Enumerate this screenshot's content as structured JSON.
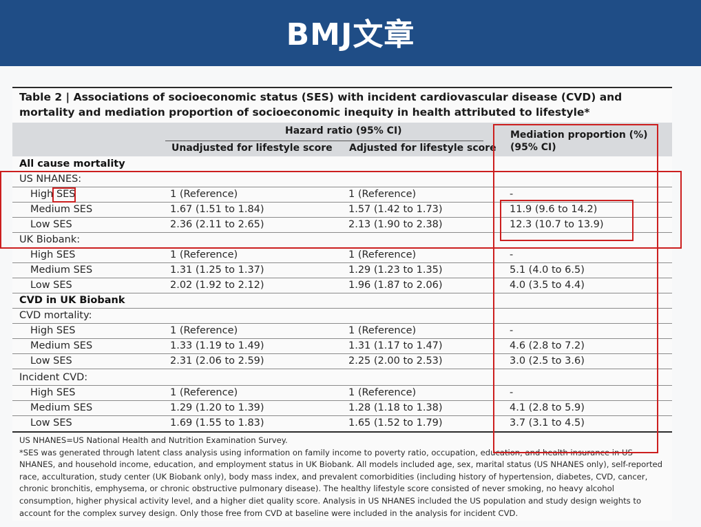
{
  "banner": {
    "title": "BMJ文章"
  },
  "table": {
    "caption": "Table 2 | Associations of socioeconomic status (SES) with incident cardiovascular disease (CVD) and mortality and mediation proportion of socioeconomic inequity in health attributed to lifestyle*",
    "group_header": "Hazard ratio (95% CI)",
    "col_unadjusted": "Unadjusted for lifestyle score",
    "col_adjusted": "Adjusted for lifestyle score",
    "col_mediation_line1": "Mediation proportion (%)",
    "col_mediation_line2": "(95% CI)",
    "rows": [
      {
        "kind": "section",
        "label": "All cause mortality"
      },
      {
        "kind": "group",
        "label": "US NHANES:"
      },
      {
        "kind": "data",
        "label_prefix": "High ",
        "label_ses": "SES",
        "unadj": "1 (Reference)",
        "adj": "1 (Reference)",
        "med": "-"
      },
      {
        "kind": "data",
        "label": "Medium SES",
        "unadj": "1.67 (1.51 to 1.84)",
        "adj": "1.57 (1.42 to 1.73)",
        "med": "11.9 (9.6 to 14.2)"
      },
      {
        "kind": "data",
        "label": "Low SES",
        "unadj": "2.36 (2.11 to 2.65)",
        "adj": "2.13 (1.90 to 2.38)",
        "med": "12.3 (10.7 to 13.9)"
      },
      {
        "kind": "group",
        "label": "UK Biobank:"
      },
      {
        "kind": "data",
        "label": "High SES",
        "unadj": "1 (Reference)",
        "adj": "1 (Reference)",
        "med": "-"
      },
      {
        "kind": "data",
        "label": "Medium SES",
        "unadj": "1.31 (1.25 to 1.37)",
        "adj": "1.29 (1.23 to 1.35)",
        "med": "5.1 (4.0 to 6.5)"
      },
      {
        "kind": "data",
        "label": "Low SES",
        "unadj": "2.02 (1.92 to 2.12)",
        "adj": "1.96 (1.87 to 2.06)",
        "med": "4.0 (3.5 to 4.4)"
      },
      {
        "kind": "section",
        "label": "CVD in UK Biobank"
      },
      {
        "kind": "group",
        "label": "CVD mortality:"
      },
      {
        "kind": "data",
        "label": "High SES",
        "unadj": "1 (Reference)",
        "adj": "1 (Reference)",
        "med": "-"
      },
      {
        "kind": "data",
        "label": "Medium SES",
        "unadj": "1.33 (1.19 to 1.49)",
        "adj": "1.31 (1.17 to 1.47)",
        "med": "4.6 (2.8 to 7.2)"
      },
      {
        "kind": "data",
        "label": "Low SES",
        "unadj": "2.31 (2.06 to 2.59)",
        "adj": "2.25 (2.00 to 2.53)",
        "med": "3.0 (2.5 to 3.6)"
      },
      {
        "kind": "group",
        "label": "Incident CVD:"
      },
      {
        "kind": "data",
        "label": "High SES",
        "unadj": "1 (Reference)",
        "adj": "1 (Reference)",
        "med": "-"
      },
      {
        "kind": "data",
        "label": "Medium SES",
        "unadj": "1.29 (1.20 to 1.39)",
        "adj": "1.28 (1.18 to 1.38)",
        "med": "4.1 (2.8 to 5.9)"
      },
      {
        "kind": "data",
        "label": "Low SES",
        "unadj": "1.69 (1.55 to 1.83)",
        "adj": "1.65 (1.52 to 1.79)",
        "med": "3.7 (3.1 to 4.5)"
      }
    ],
    "footnote_1": "US NHANES=US National Health and Nutrition Examination Survey.",
    "footnote_2": "*SES was generated through latent class analysis using information on family income to poverty ratio, occupation, education, and health insurance in US NHANES, and household income, education, and employment status in UK Biobank. All models included age, sex, marital status (US NHANES only), self-reported race, acculturation, study center (UK Biobank only), body mass index, and prevalent comorbidities (including history of hypertension, diabetes, CVD, cancer, chronic bronchitis, emphysema, or chronic obstructive pulmonary disease). The healthy lifestyle score consisted of never smoking, no heavy alcohol consumption, higher physical activity level, and a higher diet quality score. Analysis in US NHANES included the US population and study design weights to account for the complex survey design. Only those free from CVD at baseline were included in the analysis for incident CVD."
  },
  "annotation_color": "#cc1e1e"
}
